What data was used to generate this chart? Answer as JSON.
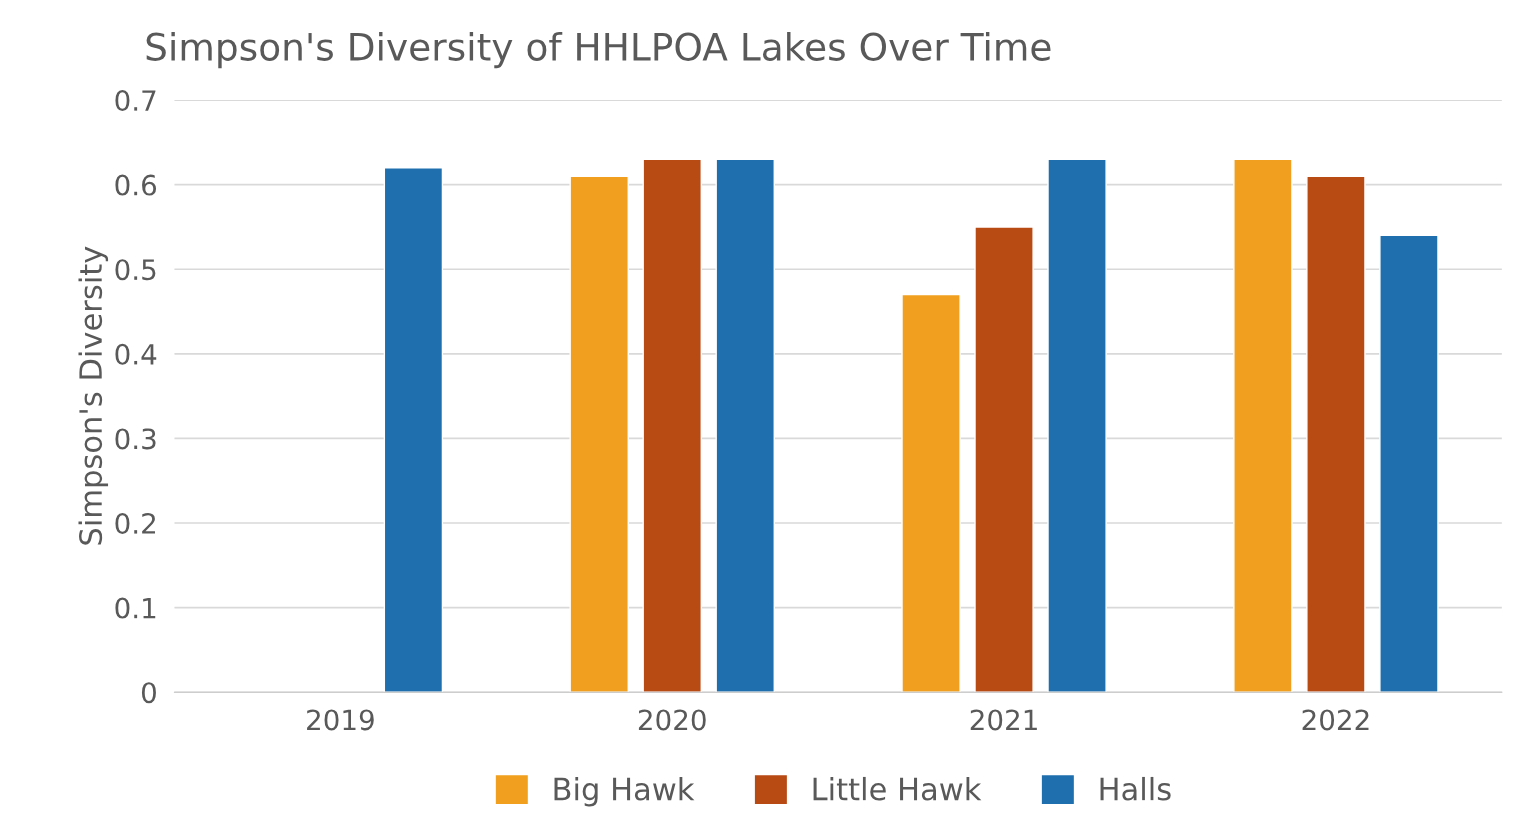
{
  "chart_data": {
    "type": "bar",
    "title": "Simpson's Diversity of HHLPOA Lakes Over Time",
    "ylabel": "Simpson's Diversity",
    "categories": [
      "2019",
      "2020",
      "2021",
      "2022"
    ],
    "series": [
      {
        "name": "Big Hawk",
        "color": "#f0a01e",
        "values": [
          null,
          0.61,
          0.47,
          0.63
        ]
      },
      {
        "name": "Little Hawk",
        "color": "#b84a14",
        "values": [
          null,
          0.63,
          0.55,
          0.61
        ]
      },
      {
        "name": "Halls",
        "color": "#1f6fae",
        "values": [
          0.62,
          0.63,
          0.63,
          0.54
        ]
      }
    ],
    "ylim": [
      0,
      0.7
    ],
    "yticks": [
      0,
      0.1,
      0.2,
      0.3,
      0.4,
      0.5,
      0.6,
      0.7
    ],
    "grid": "y",
    "legend": "bottom"
  }
}
